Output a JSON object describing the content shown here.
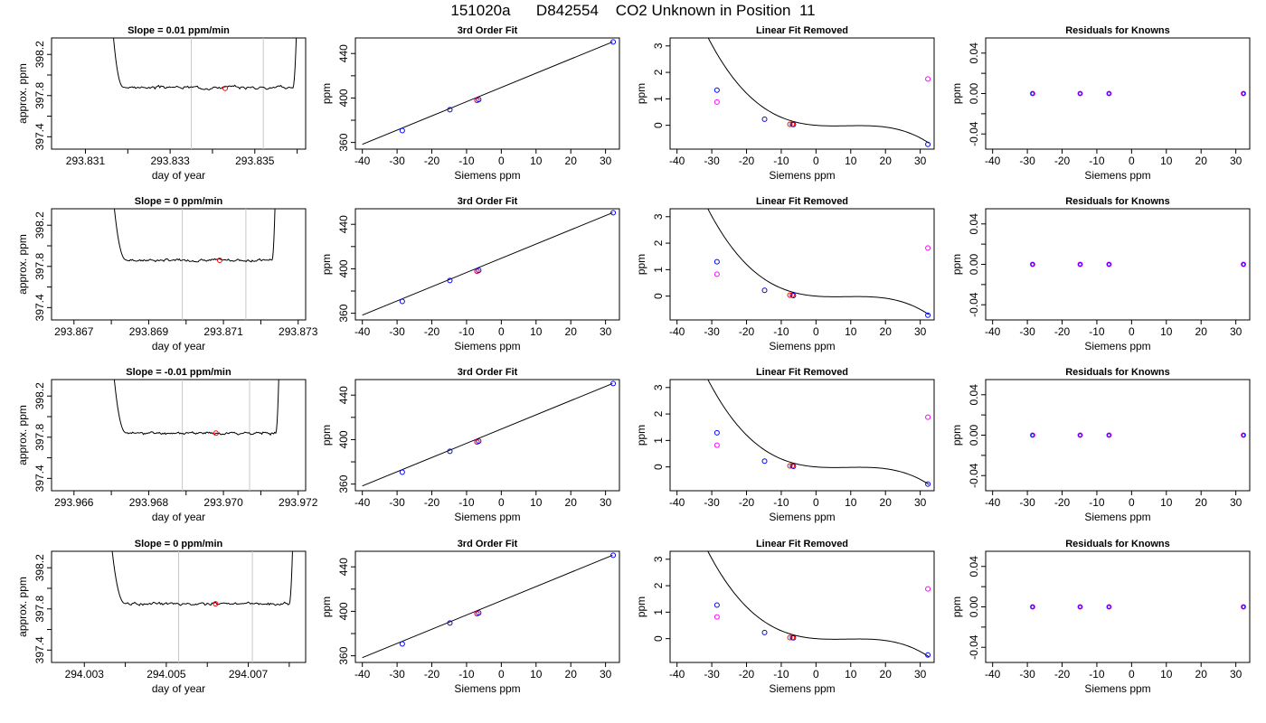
{
  "figure": {
    "title": "151020a      D842554    CO2 Unknown in Position  11"
  },
  "colors": {
    "axis": "#000000",
    "trace": "#000000",
    "vline": "#c8c8c8",
    "known": "#0000ff",
    "unknown": "#ff00ff",
    "sample_mean": "#ff0000",
    "fit_line": "#000000"
  },
  "chart_data": [
    {
      "row": 0,
      "col": 0,
      "type": "line",
      "title": "Slope =  0.01  ppm/min",
      "xlabel": "day of year",
      "ylabel": "approx. ppm",
      "xlim": [
        293.8302,
        293.8362
      ],
      "ylim": [
        397.28,
        398.36
      ],
      "xticks": [
        293.831,
        293.833,
        293.835
      ],
      "xtick_labels": [
        "293.831",
        "293.833",
        "293.835"
      ],
      "xminor": [
        293.832,
        293.834,
        293.836
      ],
      "yticks": [
        397.4,
        397.8,
        398.2
      ],
      "ytick_labels": [
        "397.4",
        "397.8",
        "398.2"
      ],
      "yminor": [
        397.6,
        398.0
      ],
      "vlines": [
        293.8335,
        293.8352
      ],
      "trace": {
        "start": 293.8316,
        "flat_start": 293.8319,
        "flat_end": 293.8359,
        "end": 293.836,
        "level": 397.88,
        "noise": 0.012,
        "seed": 3
      },
      "marker": {
        "x": 293.8343,
        "y": 397.87
      }
    },
    {
      "row": 0,
      "col": 1,
      "type": "scatter",
      "title": "3rd Order Fit",
      "xlabel": "Siemens ppm",
      "ylabel": "ppm",
      "xlim": [
        -42,
        34
      ],
      "ylim": [
        354,
        454
      ],
      "xticks": [
        -40,
        -30,
        -20,
        -10,
        0,
        10,
        20,
        30
      ],
      "xtick_labels": [
        "-40",
        "-30",
        "-20",
        "-10",
        "0",
        "10",
        "20",
        "30"
      ],
      "yticks": [
        360,
        400,
        440
      ],
      "ytick_labels": [
        "360",
        "400",
        "440"
      ],
      "yminor": [
        380,
        420
      ],
      "line": {
        "x": [
          -40,
          32
        ],
        "y": [
          358.3,
          450.4
        ]
      },
      "known_points": [
        [
          -28.5,
          370.7
        ],
        [
          -14.8,
          389.5
        ],
        [
          -6.5,
          398.6
        ],
        [
          32.2,
          450.4
        ]
      ],
      "unknown_points": [
        [
          -7.0,
          397.8
        ]
      ],
      "sample_points": [
        [
          -7.0,
          398.0
        ]
      ]
    },
    {
      "row": 0,
      "col": 2,
      "type": "scatter",
      "title": "Linear Fit Removed",
      "xlabel": "Siemens ppm",
      "ylabel": "ppm",
      "xlim": [
        -42,
        34
      ],
      "ylim": [
        -0.9,
        3.3
      ],
      "xticks": [
        -40,
        -30,
        -20,
        -10,
        0,
        10,
        20,
        30
      ],
      "xtick_labels": [
        "-40",
        "-30",
        "-20",
        "-10",
        "0",
        "10",
        "20",
        "30"
      ],
      "yticks": [
        0,
        1,
        2,
        3
      ],
      "ytick_labels": [
        "0",
        "1",
        "2",
        "3"
      ],
      "curve": {
        "coef": [
          0.0,
          -0.0106,
          0.00143,
          -5.35e-05
        ],
        "xmin": -39.5,
        "xmax": 32.5
      },
      "known_points": [
        [
          -28.5,
          1.33
        ],
        [
          -14.8,
          0.23
        ],
        [
          -6.5,
          0.03
        ],
        [
          32.2,
          -0.72
        ]
      ],
      "unknown_points": [
        [
          -28.5,
          0.88
        ],
        [
          32.2,
          1.75
        ]
      ],
      "sample_points": [
        [
          -7.5,
          0.04
        ],
        [
          -6.8,
          0.04
        ]
      ]
    },
    {
      "row": 0,
      "col": 3,
      "type": "scatter",
      "title": "Residuals for Knowns",
      "xlabel": "Siemens ppm",
      "ylabel": "ppm",
      "xlim": [
        -42,
        34
      ],
      "ylim": [
        -0.055,
        0.055
      ],
      "xticks": [
        -40,
        -30,
        -20,
        -10,
        0,
        10,
        20,
        30
      ],
      "xtick_labels": [
        "-40",
        "-30",
        "-20",
        "-10",
        "0",
        "10",
        "20",
        "30"
      ],
      "yticks": [
        -0.04,
        0.0,
        0.04
      ],
      "ytick_labels": [
        "-0.04",
        "0.00",
        "0.04"
      ],
      "yminor": [
        -0.02,
        0.02
      ],
      "residual_points": [
        [
          -28.5,
          0.0
        ],
        [
          -14.8,
          0.0
        ],
        [
          -6.5,
          0.0
        ],
        [
          32.2,
          0.0
        ]
      ]
    },
    {
      "row": 1,
      "col": 0,
      "type": "line",
      "title": "Slope =  0  ppm/min",
      "xlabel": "day of year",
      "ylabel": "approx. ppm",
      "xlim": [
        293.8664,
        293.8732
      ],
      "ylim": [
        397.28,
        398.36
      ],
      "xticks": [
        293.867,
        293.869,
        293.871,
        293.873
      ],
      "xtick_labels": [
        "293.867",
        "293.869",
        "293.871",
        "293.873"
      ],
      "xminor": [
        293.868,
        293.87,
        293.872
      ],
      "yticks": [
        397.4,
        397.8,
        398.2
      ],
      "ytick_labels": [
        "397.4",
        "397.8",
        "398.2"
      ],
      "yminor": [
        397.6,
        398.0
      ],
      "vlines": [
        293.8699,
        293.8716
      ],
      "trace": {
        "start": 293.868,
        "flat_start": 293.8684,
        "flat_end": 293.8723,
        "end": 293.8724,
        "level": 397.86,
        "noise": 0.01,
        "seed": 7
      },
      "marker": {
        "x": 293.8709,
        "y": 397.86
      }
    },
    {
      "row": 1,
      "col": 1,
      "type": "scatter",
      "title": "3rd Order Fit",
      "xlabel": "Siemens ppm",
      "ylabel": "ppm",
      "xlim": [
        -42,
        34
      ],
      "ylim": [
        354,
        454
      ],
      "xticks": [
        -40,
        -30,
        -20,
        -10,
        0,
        10,
        20,
        30
      ],
      "xtick_labels": [
        "-40",
        "-30",
        "-20",
        "-10",
        "0",
        "10",
        "20",
        "30"
      ],
      "yticks": [
        360,
        400,
        440
      ],
      "ytick_labels": [
        "360",
        "400",
        "440"
      ],
      "yminor": [
        380,
        420
      ],
      "line": {
        "x": [
          -40,
          32
        ],
        "y": [
          358.3,
          450.4
        ]
      },
      "known_points": [
        [
          -28.5,
          370.7
        ],
        [
          -14.8,
          389.5
        ],
        [
          -6.5,
          398.6
        ],
        [
          32.2,
          450.4
        ]
      ],
      "unknown_points": [
        [
          -7.0,
          397.8
        ]
      ],
      "sample_points": [
        [
          -7.0,
          398.0
        ]
      ]
    },
    {
      "row": 1,
      "col": 2,
      "type": "scatter",
      "title": "Linear Fit Removed",
      "xlabel": "Siemens ppm",
      "ylabel": "ppm",
      "xlim": [
        -42,
        34
      ],
      "ylim": [
        -0.9,
        3.3
      ],
      "xticks": [
        -40,
        -30,
        -20,
        -10,
        0,
        10,
        20,
        30
      ],
      "xtick_labels": [
        "-40",
        "-30",
        "-20",
        "-10",
        "0",
        "10",
        "20",
        "30"
      ],
      "yticks": [
        0,
        1,
        2,
        3
      ],
      "ytick_labels": [
        "0",
        "1",
        "2",
        "3"
      ],
      "curve": {
        "coef": [
          0.0,
          -0.0106,
          0.0014,
          -5.35e-05
        ],
        "xmin": -39.5,
        "xmax": 32.5
      },
      "known_points": [
        [
          -28.5,
          1.3
        ],
        [
          -14.8,
          0.22
        ],
        [
          -6.5,
          0.02
        ],
        [
          32.2,
          -0.72
        ]
      ],
      "unknown_points": [
        [
          -28.5,
          0.83
        ],
        [
          32.2,
          1.82
        ]
      ],
      "sample_points": [
        [
          -7.5,
          0.04
        ],
        [
          -6.8,
          0.04
        ]
      ]
    },
    {
      "row": 1,
      "col": 3,
      "type": "scatter",
      "title": "Residuals for Knowns",
      "xlabel": "Siemens ppm",
      "ylabel": "ppm",
      "xlim": [
        -42,
        34
      ],
      "ylim": [
        -0.055,
        0.055
      ],
      "xticks": [
        -40,
        -30,
        -20,
        -10,
        0,
        10,
        20,
        30
      ],
      "xtick_labels": [
        "-40",
        "-30",
        "-20",
        "-10",
        "0",
        "10",
        "20",
        "30"
      ],
      "yticks": [
        -0.04,
        0.0,
        0.04
      ],
      "ytick_labels": [
        "-0.04",
        "0.00",
        "0.04"
      ],
      "yminor": [
        -0.02,
        0.02
      ],
      "residual_points": [
        [
          -28.5,
          0.0
        ],
        [
          -14.8,
          0.0
        ],
        [
          -6.5,
          0.0
        ],
        [
          32.2,
          0.0
        ]
      ]
    },
    {
      "row": 2,
      "col": 0,
      "type": "line",
      "title": "Slope =  -0.01  ppm/min",
      "xlabel": "day of year",
      "ylabel": "approx. ppm",
      "xlim": [
        293.9654,
        293.9722
      ],
      "ylim": [
        397.28,
        398.36
      ],
      "xticks": [
        293.966,
        293.968,
        293.97,
        293.972
      ],
      "xtick_labels": [
        "293.966",
        "293.968",
        "293.970",
        "293.972"
      ],
      "xminor": [
        293.967,
        293.969,
        293.971
      ],
      "yticks": [
        397.4,
        397.8,
        398.2
      ],
      "ytick_labels": [
        "397.4",
        "397.8",
        "398.2"
      ],
      "yminor": [
        397.6,
        398.0
      ],
      "vlines": [
        293.9689,
        293.9707
      ],
      "trace": {
        "start": 293.967,
        "flat_start": 293.9674,
        "flat_end": 293.9714,
        "end": 293.9715,
        "level": 397.84,
        "noise": 0.011,
        "seed": 11
      },
      "marker": {
        "x": 293.9698,
        "y": 397.84
      }
    },
    {
      "row": 2,
      "col": 1,
      "type": "scatter",
      "title": "3rd Order Fit",
      "xlabel": "Siemens ppm",
      "ylabel": "ppm",
      "xlim": [
        -42,
        34
      ],
      "ylim": [
        354,
        454
      ],
      "xticks": [
        -40,
        -30,
        -20,
        -10,
        0,
        10,
        20,
        30
      ],
      "xtick_labels": [
        "-40",
        "-30",
        "-20",
        "-10",
        "0",
        "10",
        "20",
        "30"
      ],
      "yticks": [
        360,
        400,
        440
      ],
      "ytick_labels": [
        "360",
        "400",
        "440"
      ],
      "yminor": [
        380,
        420
      ],
      "line": {
        "x": [
          -40,
          32
        ],
        "y": [
          358.3,
          450.4
        ]
      },
      "known_points": [
        [
          -28.5,
          370.7
        ],
        [
          -14.8,
          389.5
        ],
        [
          -6.5,
          398.6
        ],
        [
          32.2,
          450.4
        ]
      ],
      "unknown_points": [
        [
          -7.0,
          397.8
        ]
      ],
      "sample_points": [
        [
          -7.0,
          398.0
        ]
      ]
    },
    {
      "row": 2,
      "col": 2,
      "type": "scatter",
      "title": "Linear Fit Removed",
      "xlabel": "Siemens ppm",
      "ylabel": "ppm",
      "xlim": [
        -42,
        34
      ],
      "ylim": [
        -0.9,
        3.3
      ],
      "xticks": [
        -40,
        -30,
        -20,
        -10,
        0,
        10,
        20,
        30
      ],
      "xtick_labels": [
        "-40",
        "-30",
        "-20",
        "-10",
        "0",
        "10",
        "20",
        "30"
      ],
      "yticks": [
        0,
        1,
        2,
        3
      ],
      "ytick_labels": [
        "0",
        "1",
        "2",
        "3"
      ],
      "curve": {
        "coef": [
          0.0,
          -0.0106,
          0.00142,
          -5.3e-05
        ],
        "xmin": -39.5,
        "xmax": 32.5
      },
      "known_points": [
        [
          -28.5,
          1.29
        ],
        [
          -14.8,
          0.22
        ],
        [
          -6.5,
          0.02
        ],
        [
          32.2,
          -0.65
        ]
      ],
      "unknown_points": [
        [
          -28.5,
          0.82
        ],
        [
          32.2,
          1.88
        ]
      ],
      "sample_points": [
        [
          -7.5,
          0.04
        ],
        [
          -6.8,
          0.04
        ]
      ]
    },
    {
      "row": 2,
      "col": 3,
      "type": "scatter",
      "title": "Residuals for Knowns",
      "xlabel": "Siemens ppm",
      "ylabel": "ppm",
      "xlim": [
        -42,
        34
      ],
      "ylim": [
        -0.055,
        0.055
      ],
      "xticks": [
        -40,
        -30,
        -20,
        -10,
        0,
        10,
        20,
        30
      ],
      "xtick_labels": [
        "-40",
        "-30",
        "-20",
        "-10",
        "0",
        "10",
        "20",
        "30"
      ],
      "yticks": [
        -0.04,
        0.0,
        0.04
      ],
      "ytick_labels": [
        "-0.04",
        "0.00",
        "0.04"
      ],
      "yminor": [
        -0.02,
        0.02
      ],
      "residual_points": [
        [
          -28.5,
          0.0
        ],
        [
          -14.8,
          0.0
        ],
        [
          -6.5,
          0.0
        ],
        [
          32.2,
          0.0
        ]
      ]
    },
    {
      "row": 3,
      "col": 0,
      "type": "line",
      "title": "Slope =  0  ppm/min",
      "xlabel": "day of year",
      "ylabel": "approx. ppm",
      "xlim": [
        294.0022,
        294.0084
      ],
      "ylim": [
        397.28,
        398.36
      ],
      "xticks": [
        294.003,
        294.005,
        294.007
      ],
      "xtick_labels": [
        "294.003",
        "294.005",
        "294.007"
      ],
      "xminor": [
        294.004,
        294.006,
        294.008
      ],
      "yticks": [
        397.4,
        397.8,
        398.2
      ],
      "ytick_labels": [
        "397.4",
        "397.8",
        "398.2"
      ],
      "yminor": [
        397.6,
        398.0
      ],
      "vlines": [
        294.0053,
        294.0071
      ],
      "trace": {
        "start": 294.0036,
        "flat_start": 294.004,
        "flat_end": 294.008,
        "end": 294.0081,
        "level": 397.85,
        "noise": 0.012,
        "seed": 19
      },
      "marker": {
        "x": 294.0062,
        "y": 397.85
      }
    },
    {
      "row": 3,
      "col": 1,
      "type": "scatter",
      "title": "3rd Order Fit",
      "xlabel": "Siemens ppm",
      "ylabel": "ppm",
      "xlim": [
        -42,
        34
      ],
      "ylim": [
        354,
        454
      ],
      "xticks": [
        -40,
        -30,
        -20,
        -10,
        0,
        10,
        20,
        30
      ],
      "xtick_labels": [
        "-40",
        "-30",
        "-20",
        "-10",
        "0",
        "10",
        "20",
        "30"
      ],
      "yticks": [
        360,
        400,
        440
      ],
      "ytick_labels": [
        "360",
        "400",
        "440"
      ],
      "yminor": [
        380,
        420
      ],
      "line": {
        "x": [
          -40,
          32
        ],
        "y": [
          358.3,
          450.4
        ]
      },
      "known_points": [
        [
          -28.5,
          370.7
        ],
        [
          -14.8,
          389.5
        ],
        [
          -6.5,
          398.6
        ],
        [
          32.2,
          450.4
        ]
      ],
      "unknown_points": [
        [
          -7.0,
          397.8
        ]
      ],
      "sample_points": [
        [
          -7.0,
          398.0
        ]
      ]
    },
    {
      "row": 3,
      "col": 2,
      "type": "scatter",
      "title": "Linear Fit Removed",
      "xlabel": "Siemens ppm",
      "ylabel": "ppm",
      "xlim": [
        -42,
        34
      ],
      "ylim": [
        -0.9,
        3.3
      ],
      "xticks": [
        -40,
        -30,
        -20,
        -10,
        0,
        10,
        20,
        30
      ],
      "xtick_labels": [
        "-40",
        "-30",
        "-20",
        "-10",
        "0",
        "10",
        "20",
        "30"
      ],
      "yticks": [
        0,
        1,
        2,
        3
      ],
      "ytick_labels": [
        "0",
        "1",
        "2",
        "3"
      ],
      "curve": {
        "coef": [
          0.0,
          -0.0104,
          0.00141,
          -5.35e-05
        ],
        "xmin": -39.5,
        "xmax": 32.5
      },
      "known_points": [
        [
          -28.5,
          1.27
        ],
        [
          -14.8,
          0.23
        ],
        [
          -6.5,
          0.03
        ],
        [
          32.2,
          -0.62
        ]
      ],
      "unknown_points": [
        [
          -28.5,
          0.82
        ],
        [
          32.2,
          1.88
        ]
      ],
      "sample_points": [
        [
          -7.5,
          0.04
        ],
        [
          -6.8,
          0.04
        ]
      ]
    },
    {
      "row": 3,
      "col": 3,
      "type": "scatter",
      "title": "Residuals for Knowns",
      "xlabel": "Siemens ppm",
      "ylabel": "ppm",
      "xlim": [
        -42,
        34
      ],
      "ylim": [
        -0.055,
        0.055
      ],
      "xticks": [
        -40,
        -30,
        -20,
        -10,
        0,
        10,
        20,
        30
      ],
      "xtick_labels": [
        "-40",
        "-30",
        "-20",
        "-10",
        "0",
        "10",
        "20",
        "30"
      ],
      "yticks": [
        -0.04,
        0.0,
        0.04
      ],
      "ytick_labels": [
        "-0.04",
        "0.00",
        "0.04"
      ],
      "yminor": [
        -0.02,
        0.02
      ],
      "residual_points": [
        [
          -28.5,
          0.0
        ],
        [
          -14.8,
          0.0
        ],
        [
          -6.5,
          0.0
        ],
        [
          32.2,
          0.0
        ]
      ]
    }
  ]
}
